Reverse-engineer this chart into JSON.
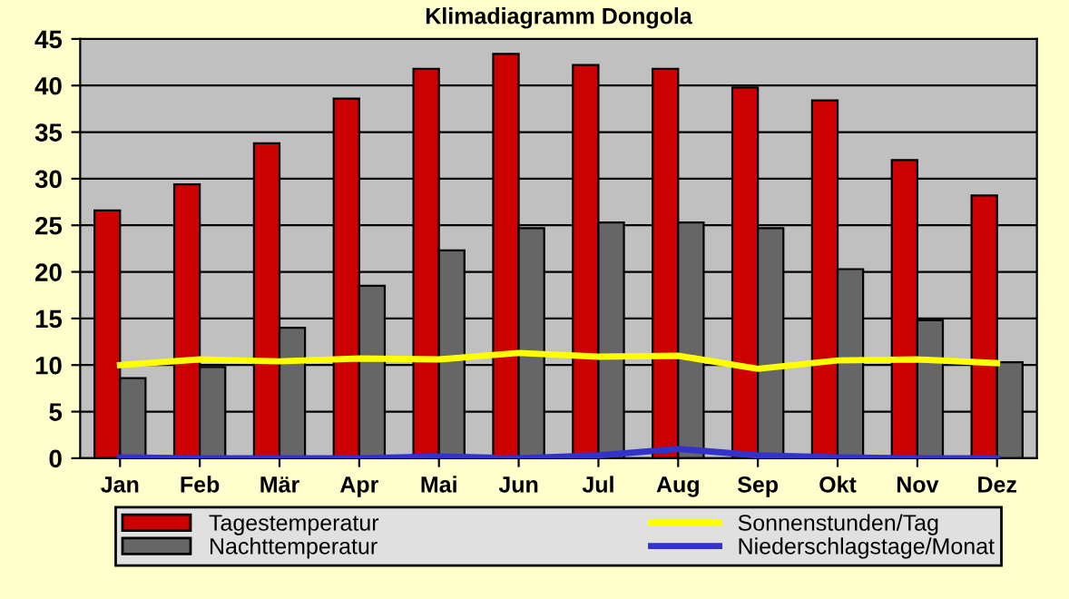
{
  "chart_data": {
    "type": "bar",
    "title": "Klimadiagramm Dongola",
    "categories": [
      "Jan",
      "Feb",
      "Mär",
      "Apr",
      "Mai",
      "Jun",
      "Jul",
      "Aug",
      "Sep",
      "Okt",
      "Nov",
      "Dez"
    ],
    "series": [
      {
        "name": "Tagestemperatur",
        "color": "#cc0000",
        "values": [
          26.6,
          29.4,
          33.8,
          38.6,
          41.8,
          43.4,
          42.2,
          41.8,
          39.8,
          38.4,
          32.0,
          28.2
        ]
      },
      {
        "name": "Nachttemperatur",
        "color": "#666666",
        "values": [
          8.6,
          9.8,
          14.0,
          18.5,
          22.3,
          24.7,
          25.3,
          25.3,
          24.7,
          20.3,
          14.8,
          10.3
        ]
      },
      {
        "name": "Sonnenstunden/Tag",
        "type": "line",
        "color": "#ffff00",
        "values": [
          10.0,
          10.6,
          10.4,
          10.7,
          10.6,
          11.3,
          10.9,
          11.0,
          9.6,
          10.5,
          10.6,
          10.2
        ]
      },
      {
        "name": "Niederschlagstage/Monat",
        "type": "line",
        "color": "#3333cc",
        "values": [
          0.1,
          0,
          0,
          0,
          0.2,
          0,
          0.3,
          1.0,
          0.3,
          0.1,
          0,
          0
        ]
      }
    ],
    "ylim": [
      0,
      45
    ],
    "yticks": [
      0,
      5,
      10,
      15,
      20,
      25,
      30,
      35,
      40,
      45
    ],
    "grid": "y",
    "legend": "bottom"
  }
}
